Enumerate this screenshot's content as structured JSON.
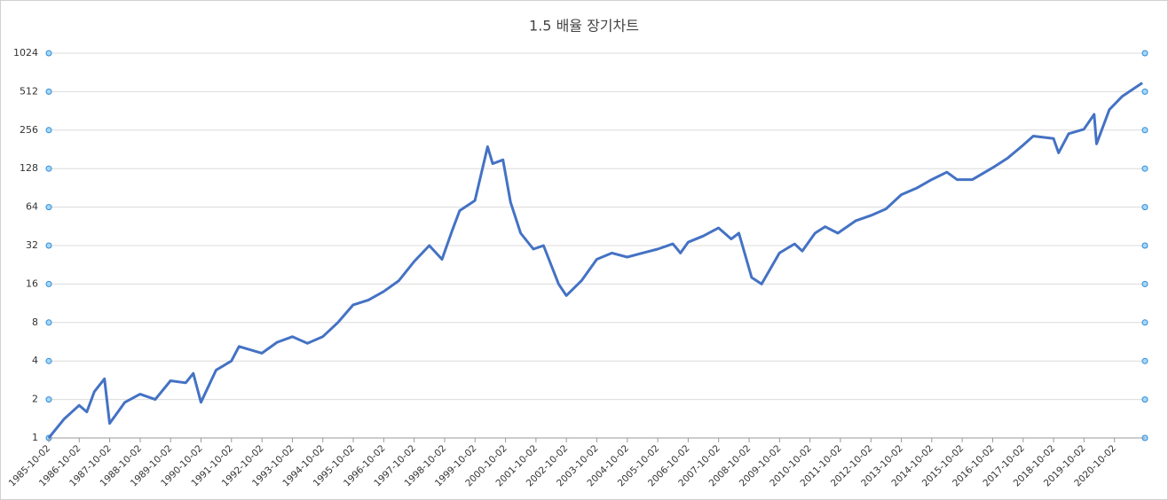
{
  "chart_data": {
    "type": "line",
    "title": "1.5 배율  장기차트",
    "x": [
      "1985-10",
      "1986-04",
      "1986-10",
      "1987-01",
      "1987-04",
      "1987-08",
      "1987-10",
      "1988-04",
      "1988-10",
      "1989-04",
      "1989-10",
      "1990-04",
      "1990-07",
      "1990-10",
      "1991-04",
      "1991-10",
      "1992-01",
      "1992-10",
      "1993-04",
      "1993-10",
      "1994-04",
      "1994-10",
      "1995-04",
      "1995-10",
      "1996-04",
      "1996-10",
      "1997-04",
      "1997-10",
      "1998-04",
      "1998-09",
      "1999-01",
      "1999-04",
      "1999-10",
      "2000-03",
      "2000-05",
      "2000-09",
      "2000-12",
      "2001-04",
      "2001-09",
      "2002-01",
      "2002-07",
      "2002-10",
      "2003-04",
      "2003-10",
      "2004-04",
      "2004-10",
      "2005-04",
      "2005-10",
      "2006-04",
      "2006-07",
      "2006-10",
      "2007-04",
      "2007-10",
      "2008-03",
      "2008-06",
      "2008-11",
      "2009-03",
      "2009-10",
      "2010-04",
      "2010-07",
      "2010-12",
      "2011-04",
      "2011-09",
      "2012-04",
      "2012-10",
      "2013-04",
      "2013-10",
      "2014-04",
      "2014-10",
      "2015-04",
      "2015-08",
      "2016-02",
      "2016-10",
      "2017-04",
      "2017-10",
      "2018-02",
      "2018-10",
      "2018-12",
      "2019-04",
      "2019-10",
      "2020-02",
      "2020-03",
      "2020-08",
      "2021-01",
      "2021-09"
    ],
    "values": [
      1.0,
      1.4,
      1.8,
      1.6,
      2.3,
      2.9,
      1.3,
      1.9,
      2.2,
      2.0,
      2.8,
      2.7,
      3.2,
      1.9,
      3.4,
      4.0,
      5.2,
      4.6,
      5.6,
      6.2,
      5.5,
      6.2,
      8,
      11,
      12,
      14,
      17,
      24,
      32,
      25,
      42,
      60,
      72,
      190,
      140,
      150,
      70,
      40,
      30,
      32,
      16,
      13,
      17,
      25,
      28,
      26,
      28,
      30,
      33,
      28,
      34,
      38,
      44,
      36,
      40,
      18,
      16,
      28,
      33,
      29,
      40,
      45,
      40,
      50,
      55,
      62,
      80,
      90,
      105,
      120,
      105,
      105,
      130,
      155,
      195,
      230,
      220,
      170,
      240,
      260,
      340,
      200,
      370,
      470,
      600
    ],
    "color": "#4472c4",
    "xlim": [
      "1985-10-02",
      "2021-10-02"
    ],
    "xticks": [
      "1985-10-02",
      "1986-10-02",
      "1987-10-02",
      "1988-10-02",
      "1989-10-02",
      "1990-10-02",
      "1991-10-02",
      "1992-10-02",
      "1993-10-02",
      "1994-10-02",
      "1995-10-02",
      "1996-10-02",
      "1997-10-02",
      "1998-10-02",
      "1999-10-02",
      "2000-10-02",
      "2001-10-02",
      "2002-10-02",
      "2003-10-02",
      "2004-10-02",
      "2005-10-02",
      "2006-10-02",
      "2007-10-02",
      "2008-10-02",
      "2009-10-02",
      "2010-10-02",
      "2011-10-02",
      "2012-10-02",
      "2013-10-02",
      "2014-10-02",
      "2015-10-02",
      "2016-10-02",
      "2017-10-02",
      "2018-10-02",
      "2019-10-02",
      "2020-10-02"
    ],
    "ylim": [
      1,
      1024
    ],
    "yticks": [
      1,
      2,
      4,
      8,
      16,
      32,
      64,
      128,
      256,
      512,
      1024
    ],
    "log_scale": true,
    "grid": true
  }
}
